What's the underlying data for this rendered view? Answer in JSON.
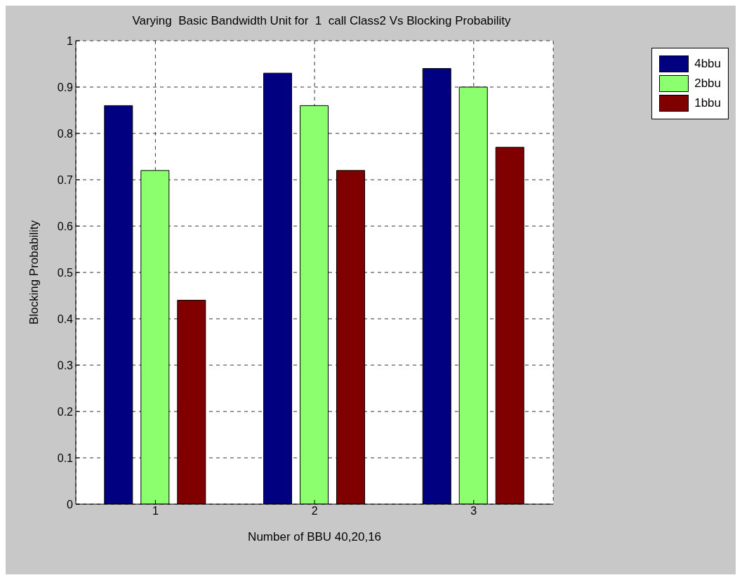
{
  "chart_data": {
    "type": "bar",
    "title": "Varying  Basic Bandwidth Unit for  1  call Class2 Vs Blocking Probability",
    "xlabel": "Number of BBU 40,20,16",
    "ylabel": "Blocking Probability",
    "categories": [
      "1",
      "2",
      "3"
    ],
    "series": [
      {
        "name": "4bbu",
        "color": "#000080",
        "values": [
          0.86,
          0.93,
          0.94
        ]
      },
      {
        "name": "2bbu",
        "color": "#8cff6e",
        "values": [
          0.72,
          0.86,
          0.9
        ]
      },
      {
        "name": "1bbu",
        "color": "#800000",
        "values": [
          0.44,
          0.72,
          0.77
        ]
      }
    ],
    "ylim": [
      0,
      1
    ],
    "yticks": [
      0,
      0.1,
      0.2,
      0.3,
      0.4,
      0.5,
      0.6,
      0.7,
      0.8,
      0.9,
      1
    ],
    "grid": true,
    "legend": "top right"
  }
}
